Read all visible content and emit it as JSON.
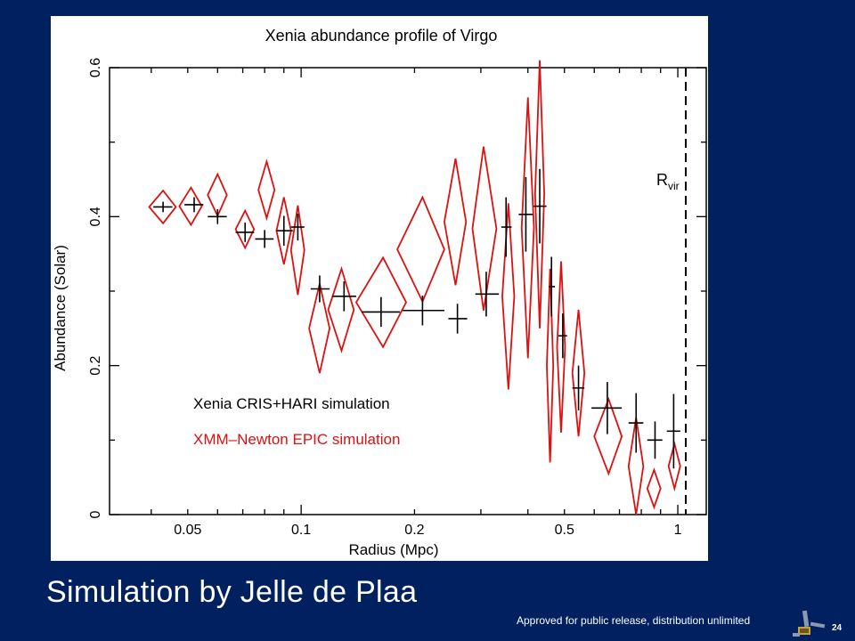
{
  "slide": {
    "caption": "Simulation by Jelle de Plaa",
    "footer": "Approved for public release, distribution unlimited",
    "page_number": "24",
    "colors": {
      "background": "#012060",
      "text": "#ffffff"
    },
    "logo_icon": "satellite-icon"
  },
  "chart_data": {
    "type": "scatter",
    "title": "Xenia abundance profile of Virgo",
    "xlabel": "Radius (Mpc)",
    "ylabel": "Abundance (Solar)",
    "xscale": "log",
    "xlim": [
      0.031,
      1.19
    ],
    "ylim": [
      0,
      0.6
    ],
    "xticks": [
      {
        "value": 0.05,
        "label": "0.05"
      },
      {
        "value": 0.1,
        "label": "0.1"
      },
      {
        "value": 0.2,
        "label": "0.2"
      },
      {
        "value": 0.5,
        "label": "0.5"
      },
      {
        "value": 1,
        "label": "1"
      }
    ],
    "yticks": [
      {
        "value": 0,
        "label": "0"
      },
      {
        "value": 0.2,
        "label": "0.2"
      },
      {
        "value": 0.4,
        "label": "0.4"
      },
      {
        "value": 0.6,
        "label": "0.6"
      }
    ],
    "annotations": {
      "vline": {
        "x": 1.05,
        "label": "R",
        "label_sub": "vir",
        "style": "dashed"
      }
    },
    "legend_position": "inside-lower-left",
    "series": [
      {
        "name": "Xenia CRIS+HARI simulation",
        "color": "#000000",
        "marker": "cross",
        "points": [
          {
            "x": 0.043,
            "y": 0.413,
            "xerr": [
              0.0405,
              0.0455
            ],
            "yerr": 0.007
          },
          {
            "x": 0.052,
            "y": 0.416,
            "xerr": [
              0.049,
              0.055
            ],
            "yerr": 0.01
          },
          {
            "x": 0.06,
            "y": 0.4,
            "xerr": [
              0.0565,
              0.0635
            ],
            "yerr": 0.01
          },
          {
            "x": 0.071,
            "y": 0.379,
            "xerr": [
              0.067,
              0.075
            ],
            "yerr": 0.013
          },
          {
            "x": 0.08,
            "y": 0.37,
            "xerr": [
              0.0755,
              0.0845
            ],
            "yerr": 0.012
          },
          {
            "x": 0.09,
            "y": 0.381,
            "xerr": [
              0.086,
              0.095
            ],
            "yerr": 0.02
          },
          {
            "x": 0.098,
            "y": 0.386,
            "xerr": [
              0.094,
              0.102
            ],
            "yerr": 0.018
          },
          {
            "x": 0.112,
            "y": 0.303,
            "xerr": [
              0.106,
              0.119
            ],
            "yerr": 0.018
          },
          {
            "x": 0.13,
            "y": 0.293,
            "xerr": [
              0.121,
              0.14
            ],
            "yerr": 0.02
          },
          {
            "x": 0.163,
            "y": 0.272,
            "xerr": [
              0.145,
              0.183
            ],
            "yerr": 0.02
          },
          {
            "x": 0.21,
            "y": 0.274,
            "xerr": [
              0.186,
              0.24
            ],
            "yerr": 0.02
          },
          {
            "x": 0.26,
            "y": 0.263,
            "xerr": [
              0.246,
              0.276
            ],
            "yerr": 0.02
          },
          {
            "x": 0.31,
            "y": 0.296,
            "xerr": [
              0.29,
              0.335
            ],
            "yerr": 0.03
          },
          {
            "x": 0.35,
            "y": 0.386,
            "xerr": [
              0.34,
              0.362
            ],
            "yerr": 0.04
          },
          {
            "x": 0.395,
            "y": 0.403,
            "xerr": [
              0.378,
              0.412
            ],
            "yerr": 0.05
          },
          {
            "x": 0.43,
            "y": 0.414,
            "xerr": [
              0.414,
              0.448
            ],
            "yerr": 0.05
          },
          {
            "x": 0.462,
            "y": 0.306,
            "xerr": [
              0.454,
              0.472
            ],
            "yerr": 0.04
          },
          {
            "x": 0.495,
            "y": 0.24,
            "xerr": [
              0.482,
              0.508
            ],
            "yerr": 0.03
          },
          {
            "x": 0.545,
            "y": 0.17,
            "xerr": [
              0.525,
              0.565
            ],
            "yerr": 0.03
          },
          {
            "x": 0.65,
            "y": 0.143,
            "xerr": [
              0.59,
              0.71
            ],
            "yerr": 0.035
          },
          {
            "x": 0.775,
            "y": 0.123,
            "xerr": [
              0.74,
              0.81
            ],
            "yerr": 0.04
          },
          {
            "x": 0.87,
            "y": 0.1,
            "xerr": [
              0.83,
              0.91
            ],
            "yerr": 0.025
          },
          {
            "x": 0.975,
            "y": 0.112,
            "xerr": [
              0.935,
              1.015
            ],
            "yerr": 0.05
          }
        ]
      },
      {
        "name": "XMM–Newton EPIC simulation",
        "color": "#dd1111",
        "marker": "diamond",
        "points": [
          {
            "x": 0.043,
            "y": 0.413,
            "xerr": [
              0.0395,
              0.0465
            ],
            "yerr": 0.022
          },
          {
            "x": 0.051,
            "y": 0.414,
            "xerr": [
              0.0475,
              0.0545
            ],
            "yerr": 0.025
          },
          {
            "x": 0.06,
            "y": 0.429,
            "xerr": [
              0.0565,
              0.0635
            ],
            "yerr": 0.028
          },
          {
            "x": 0.071,
            "y": 0.383,
            "xerr": [
              0.067,
              0.075
            ],
            "yerr": 0.025
          },
          {
            "x": 0.081,
            "y": 0.436,
            "xerr": [
              0.077,
              0.085
            ],
            "yerr": 0.038
          },
          {
            "x": 0.09,
            "y": 0.381,
            "xerr": [
              0.086,
              0.094
            ],
            "yerr": 0.045
          },
          {
            "x": 0.098,
            "y": 0.355,
            "xerr": [
              0.094,
              0.102
            ],
            "yerr": 0.06
          },
          {
            "x": 0.112,
            "y": 0.25,
            "xerr": [
              0.105,
              0.119
            ],
            "yerr": 0.06
          },
          {
            "x": 0.128,
            "y": 0.275,
            "xerr": [
              0.118,
              0.138
            ],
            "yerr": 0.055
          },
          {
            "x": 0.165,
            "y": 0.285,
            "xerr": [
              0.14,
              0.19
            ],
            "yerr": 0.06
          },
          {
            "x": 0.21,
            "y": 0.356,
            "xerr": [
              0.18,
              0.24
            ],
            "yerr": 0.07
          },
          {
            "x": 0.257,
            "y": 0.393,
            "xerr": [
              0.24,
              0.274
            ],
            "yerr": 0.085
          },
          {
            "x": 0.305,
            "y": 0.384,
            "xerr": [
              0.285,
              0.33
            ],
            "yerr": 0.11
          },
          {
            "x": 0.355,
            "y": 0.293,
            "xerr": [
              0.342,
              0.368
            ],
            "yerr": 0.125
          },
          {
            "x": 0.4,
            "y": 0.385,
            "xerr": [
              0.385,
              0.415
            ],
            "yerr": 0.175
          },
          {
            "x": 0.43,
            "y": 0.43,
            "xerr": [
              0.418,
              0.442
            ],
            "yerr": 0.18
          },
          {
            "x": 0.458,
            "y": 0.2,
            "xerr": [
              0.449,
              0.467
            ],
            "yerr": 0.13
          },
          {
            "x": 0.49,
            "y": 0.225,
            "xerr": [
              0.478,
              0.502
            ],
            "yerr": 0.115
          },
          {
            "x": 0.545,
            "y": 0.19,
            "xerr": [
              0.525,
              0.565
            ],
            "yerr": 0.085
          },
          {
            "x": 0.655,
            "y": 0.105,
            "xerr": [
              0.6,
              0.71
            ],
            "yerr": 0.05
          },
          {
            "x": 0.775,
            "y": 0.065,
            "xerr": [
              0.74,
              0.81
            ],
            "yerr": 0.065
          },
          {
            "x": 0.865,
            "y": 0.035,
            "xerr": [
              0.83,
              0.9
            ],
            "yerr": 0.025
          },
          {
            "x": 0.98,
            "y": 0.065,
            "xerr": [
              0.945,
              1.015
            ],
            "yerr": 0.03
          }
        ]
      }
    ]
  }
}
